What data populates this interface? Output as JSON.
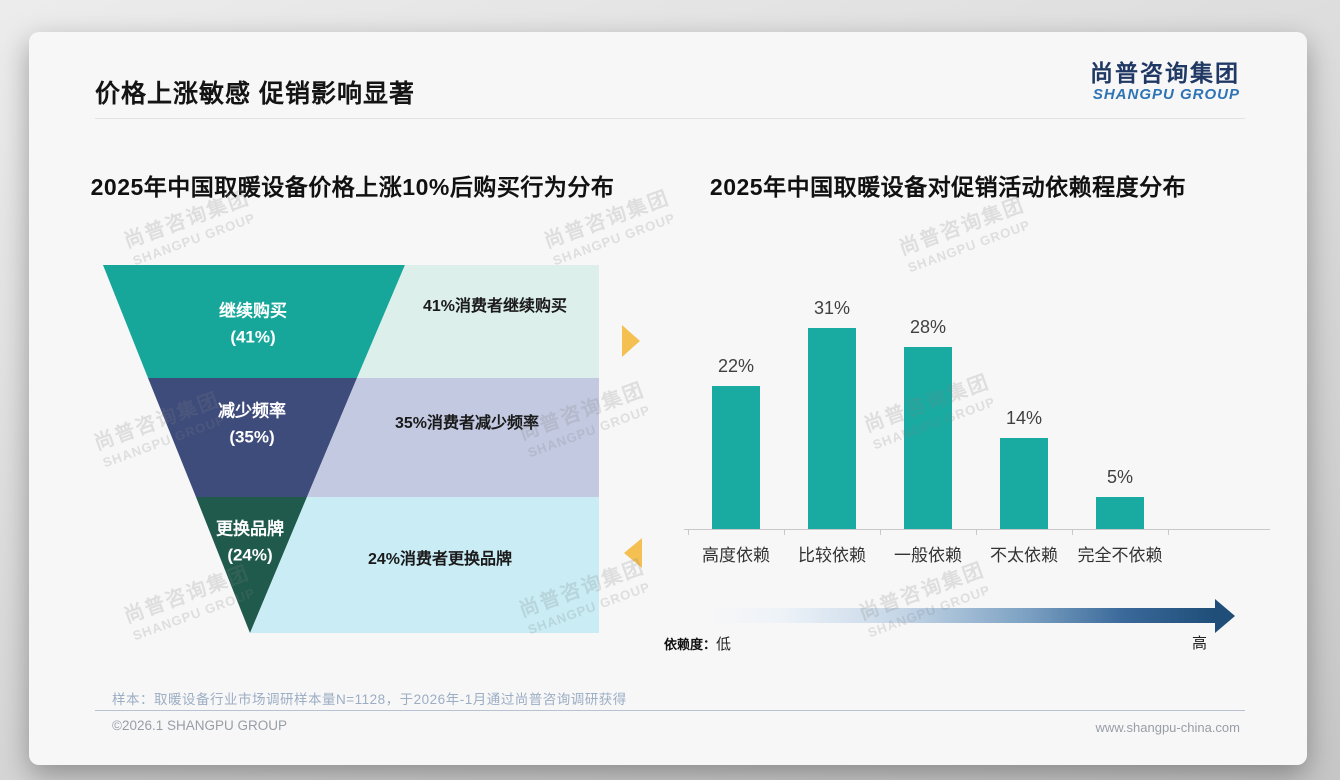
{
  "page": {
    "header_title": "价格上涨敏感 促销影响显著",
    "logo": {
      "cn": "尚普咨询集团",
      "en": "SHANGPU GROUP"
    },
    "watermark": {
      "line1": "尚普咨询集团",
      "line2": "SHANGPU GROUP"
    },
    "note": "样本：取暖设备行业市场调研样本量N=1128，于2026年-1月通过尚普咨询调研获得",
    "footer": {
      "left": "©2026.1 SHANGPU GROUP",
      "right": "www.shangpu-china.com"
    }
  },
  "colors": {
    "teal": "#17a79a",
    "bar_teal": "#19aba2",
    "navy_segment": "#3e4c7c",
    "green_segment": "#1f5a4c",
    "mint_block": "#dcefea",
    "periwinkle_block": "#c2c9e1",
    "cyan_block": "#c9ecf5",
    "arrow_yellow": "#f4c052",
    "gradient_dark_blue": "#1f4e79",
    "logo_navy": "#203864",
    "logo_blue": "#2e74b5"
  },
  "chart_data": [
    {
      "type": "funnel",
      "title": "2025年中国取暖设备价格上涨10%后购买行为分布",
      "segments": [
        {
          "label": "继续购买",
          "pct": "(41%)",
          "value": 41,
          "desc": "41%消费者继续购买",
          "color": "#17a79a",
          "desc_bg": "#dcefea"
        },
        {
          "label": "减少频率",
          "pct": "(35%)",
          "value": 35,
          "desc": "35%消费者减少频率",
          "color": "#3e4c7c",
          "desc_bg": "#c2c9e1"
        },
        {
          "label": "更换品牌",
          "pct": "(24%)",
          "value": 24,
          "desc": "24%消费者更换品牌",
          "color": "#1f5a4c",
          "desc_bg": "#c9ecf5"
        }
      ]
    },
    {
      "type": "bar",
      "title": "2025年中国取暖设备对促销活动依赖程度分布",
      "categories": [
        "高度依赖",
        "比较依赖",
        "一般依赖",
        "不太依赖",
        "完全不依赖"
      ],
      "values": [
        22,
        31,
        28,
        14,
        5
      ],
      "unit": "%",
      "bar_color": "#19aba2",
      "ylim": [
        0,
        35
      ],
      "grid": false,
      "legend": null,
      "dependence_axis": {
        "label": "依赖度：",
        "low": "低",
        "high": "高"
      }
    }
  ]
}
